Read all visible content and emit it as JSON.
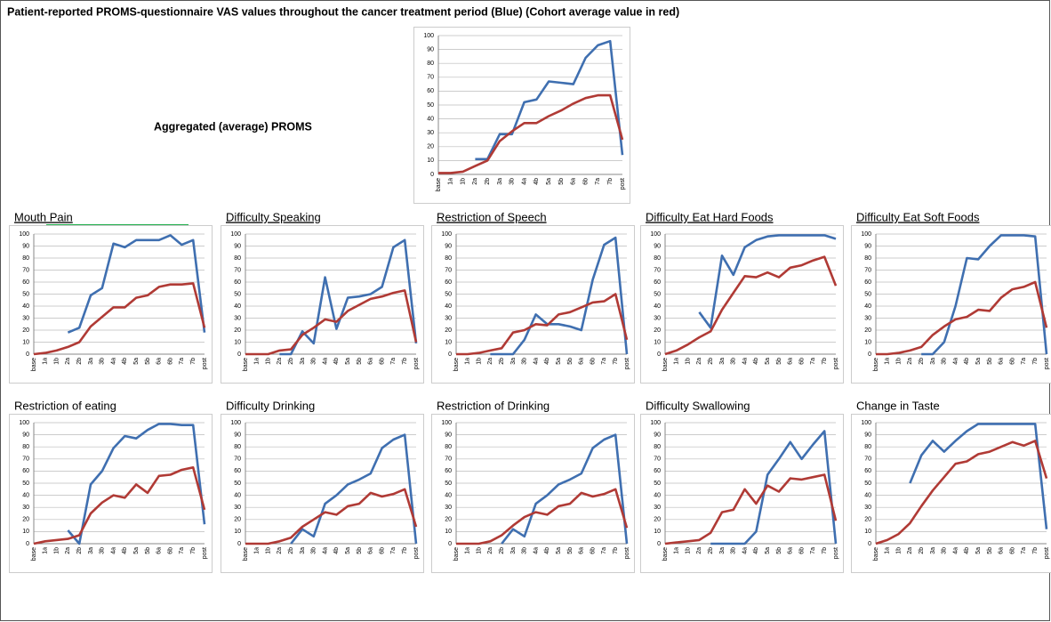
{
  "page": {
    "title": "Patient-reported PROMS-questionnaire VAS values throughout the cancer treatment period (Blue) (Cohort average value in red)"
  },
  "chart_data": [
    {
      "type": "line",
      "title": "Aggregated (average) PROMS",
      "categories": [
        "base",
        "1a",
        "1b",
        "2a",
        "2b",
        "3a",
        "3b",
        "4a",
        "4b",
        "5a",
        "5b",
        "6a",
        "6b",
        "7a",
        "7b",
        "post"
      ],
      "ylim": [
        0,
        100
      ],
      "yticks": [
        0,
        10,
        20,
        30,
        40,
        50,
        60,
        70,
        80,
        90,
        100
      ],
      "grid": true,
      "series": [
        {
          "color": "#3f6fb0",
          "values": [
            null,
            null,
            null,
            11,
            11,
            29,
            29,
            52,
            54,
            67,
            66,
            65,
            84,
            93,
            96,
            14
          ]
        },
        {
          "color": "#b03a35",
          "values": [
            1,
            1,
            2,
            6,
            10,
            24,
            31,
            37,
            37,
            42,
            46,
            51,
            55,
            57,
            57,
            25
          ]
        }
      ]
    },
    {
      "type": "line",
      "title": "Mouth Pain",
      "title_underline": true,
      "categories": [
        "base",
        "1a",
        "1b",
        "2a",
        "2b",
        "3a",
        "3b",
        "4a",
        "4b",
        "5a",
        "5b",
        "6a",
        "6b",
        "7a",
        "7b",
        "post"
      ],
      "ylim": [
        0,
        100
      ],
      "yticks": [
        0,
        10,
        20,
        30,
        40,
        50,
        60,
        70,
        80,
        90,
        100
      ],
      "grid": true,
      "series": [
        {
          "color": "#3f6fb0",
          "values": [
            null,
            null,
            null,
            18,
            22,
            49,
            55,
            92,
            89,
            95,
            95,
            95,
            99,
            91,
            95,
            18
          ]
        },
        {
          "color": "#b03a35",
          "values": [
            0,
            1,
            3,
            6,
            10,
            23,
            31,
            39,
            39,
            47,
            49,
            56,
            58,
            58,
            59,
            22
          ]
        }
      ]
    },
    {
      "type": "line",
      "title": "Difficulty Speaking",
      "title_underline": true,
      "categories": [
        "base",
        "1a",
        "1b",
        "2a",
        "2b",
        "3a",
        "3b",
        "4a",
        "4b",
        "5a",
        "5b",
        "6a",
        "6b",
        "7a",
        "7b",
        "post"
      ],
      "ylim": [
        0,
        100
      ],
      "yticks": [
        0,
        10,
        20,
        30,
        40,
        50,
        60,
        70,
        80,
        90,
        100
      ],
      "grid": true,
      "series": [
        {
          "color": "#3f6fb0",
          "values": [
            null,
            null,
            null,
            0,
            0,
            19,
            9,
            64,
            21,
            47,
            48,
            50,
            56,
            89,
            95,
            9
          ]
        },
        {
          "color": "#b03a35",
          "values": [
            0,
            0,
            0,
            3,
            4,
            16,
            22,
            29,
            27,
            36,
            41,
            46,
            48,
            51,
            53,
            10
          ]
        }
      ]
    },
    {
      "type": "line",
      "title": "Restriction of Speech",
      "title_underline": true,
      "categories": [
        "base",
        "1a",
        "1b",
        "2a",
        "2b",
        "3a",
        "3b",
        "4a",
        "4b",
        "5a",
        "5b",
        "6a",
        "6b",
        "7a",
        "7b",
        "post"
      ],
      "ylim": [
        0,
        100
      ],
      "yticks": [
        0,
        10,
        20,
        30,
        40,
        50,
        60,
        70,
        80,
        90,
        100
      ],
      "grid": true,
      "series": [
        {
          "color": "#3f6fb0",
          "values": [
            null,
            null,
            null,
            0,
            0,
            0,
            12,
            33,
            25,
            25,
            23,
            20,
            62,
            91,
            97,
            0
          ]
        },
        {
          "color": "#b03a35",
          "values": [
            0,
            0,
            1,
            3,
            5,
            18,
            20,
            25,
            24,
            33,
            35,
            39,
            43,
            44,
            50,
            12
          ]
        }
      ]
    },
    {
      "type": "line",
      "title": "Difficulty Eat Hard Foods",
      "title_underline": true,
      "categories": [
        "base",
        "1a",
        "1b",
        "2a",
        "2b",
        "3a",
        "3b",
        "4a",
        "4b",
        "5a",
        "5b",
        "6a",
        "6b",
        "7a",
        "7b",
        "post"
      ],
      "ylim": [
        0,
        100
      ],
      "yticks": [
        0,
        10,
        20,
        30,
        40,
        50,
        60,
        70,
        80,
        90,
        100
      ],
      "grid": true,
      "series": [
        {
          "color": "#3f6fb0",
          "values": [
            null,
            null,
            null,
            35,
            22,
            82,
            66,
            89,
            95,
            98,
            99,
            99,
            99,
            99,
            99,
            96
          ]
        },
        {
          "color": "#b03a35",
          "values": [
            0,
            3,
            8,
            14,
            19,
            37,
            51,
            65,
            64,
            68,
            64,
            72,
            74,
            78,
            81,
            57
          ]
        }
      ]
    },
    {
      "type": "line",
      "title": "Difficulty Eat Soft Foods",
      "title_underline": true,
      "categories": [
        "base",
        "1a",
        "1b",
        "2a",
        "2b",
        "3a",
        "3b",
        "4a",
        "4b",
        "5a",
        "5b",
        "6a",
        "6b",
        "7a",
        "7b",
        "post"
      ],
      "ylim": [
        0,
        100
      ],
      "yticks": [
        0,
        10,
        20,
        30,
        40,
        50,
        60,
        70,
        80,
        90,
        100
      ],
      "grid": true,
      "series": [
        {
          "color": "#3f6fb0",
          "values": [
            null,
            null,
            null,
            null,
            0,
            0,
            10,
            40,
            80,
            79,
            90,
            99,
            99,
            99,
            98,
            0
          ]
        },
        {
          "color": "#b03a35",
          "values": [
            0,
            0,
            1,
            3,
            6,
            16,
            23,
            29,
            31,
            37,
            36,
            47,
            54,
            56,
            60,
            22
          ]
        }
      ]
    },
    {
      "type": "line",
      "title": "Restriction of eating",
      "categories": [
        "base",
        "1a",
        "1b",
        "2a",
        "2b",
        "3a",
        "3b",
        "4a",
        "4b",
        "5a",
        "5b",
        "6a",
        "6b",
        "7a",
        "7b",
        "post"
      ],
      "ylim": [
        0,
        100
      ],
      "yticks": [
        0,
        10,
        20,
        30,
        40,
        50,
        60,
        70,
        80,
        90,
        100
      ],
      "grid": true,
      "series": [
        {
          "color": "#3f6fb0",
          "values": [
            null,
            null,
            null,
            11,
            0,
            49,
            60,
            79,
            89,
            87,
            94,
            99,
            99,
            98,
            98,
            16
          ]
        },
        {
          "color": "#b03a35",
          "values": [
            0,
            2,
            3,
            4,
            7,
            25,
            34,
            40,
            38,
            49,
            42,
            56,
            57,
            61,
            63,
            28
          ]
        }
      ]
    },
    {
      "type": "line",
      "title": "Difficulty Drinking",
      "categories": [
        "base",
        "1a",
        "1b",
        "2a",
        "2b",
        "3a",
        "3b",
        "4a",
        "4b",
        "5a",
        "5b",
        "6a",
        "6b",
        "7a",
        "7b",
        "post"
      ],
      "ylim": [
        0,
        100
      ],
      "yticks": [
        0,
        10,
        20,
        30,
        40,
        50,
        60,
        70,
        80,
        90,
        100
      ],
      "grid": true,
      "series": [
        {
          "color": "#3f6fb0",
          "values": [
            null,
            null,
            null,
            null,
            0,
            12,
            6,
            33,
            40,
            49,
            53,
            58,
            79,
            86,
            90,
            0
          ]
        },
        {
          "color": "#b03a35",
          "values": [
            0,
            0,
            0,
            2,
            5,
            14,
            20,
            26,
            24,
            31,
            33,
            42,
            39,
            41,
            45,
            14
          ]
        }
      ]
    },
    {
      "type": "line",
      "title": "Restriction of Drinking",
      "categories": [
        "base",
        "1a",
        "1b",
        "2a",
        "2b",
        "3a",
        "3b",
        "4a",
        "4b",
        "5a",
        "5b",
        "6a",
        "6b",
        "7a",
        "7b",
        "post"
      ],
      "ylim": [
        0,
        100
      ],
      "yticks": [
        0,
        10,
        20,
        30,
        40,
        50,
        60,
        70,
        80,
        90,
        100
      ],
      "grid": true,
      "series": [
        {
          "color": "#3f6fb0",
          "values": [
            null,
            null,
            null,
            null,
            0,
            12,
            6,
            33,
            40,
            49,
            53,
            58,
            79,
            86,
            90,
            0
          ]
        },
        {
          "color": "#b03a35",
          "values": [
            0,
            0,
            0,
            2,
            7,
            15,
            22,
            26,
            24,
            31,
            33,
            42,
            39,
            41,
            45,
            13
          ]
        }
      ]
    },
    {
      "type": "line",
      "title": "Difficulty Swallowing",
      "categories": [
        "base",
        "1a",
        "1b",
        "2a",
        "2b",
        "3a",
        "3b",
        "4a",
        "4b",
        "5a",
        "5b",
        "6a",
        "6b",
        "7a",
        "7b",
        "post"
      ],
      "ylim": [
        0,
        100
      ],
      "yticks": [
        0,
        10,
        20,
        30,
        40,
        50,
        60,
        70,
        80,
        90,
        100
      ],
      "grid": true,
      "series": [
        {
          "color": "#3f6fb0",
          "values": [
            null,
            null,
            null,
            null,
            0,
            0,
            0,
            0,
            10,
            57,
            70,
            84,
            70,
            82,
            93,
            0
          ]
        },
        {
          "color": "#b03a35",
          "values": [
            0,
            1,
            2,
            3,
            9,
            26,
            28,
            45,
            33,
            48,
            43,
            54,
            53,
            55,
            57,
            19
          ]
        }
      ]
    },
    {
      "type": "line",
      "title": "Change in Taste",
      "categories": [
        "base",
        "1a",
        "1b",
        "2a",
        "2b",
        "3a",
        "3b",
        "4a",
        "4b",
        "5a",
        "5b",
        "6a",
        "6b",
        "7a",
        "7b",
        "post"
      ],
      "ylim": [
        0,
        100
      ],
      "yticks": [
        0,
        10,
        20,
        30,
        40,
        50,
        60,
        70,
        80,
        90,
        100
      ],
      "grid": true,
      "series": [
        {
          "color": "#3f6fb0",
          "values": [
            null,
            null,
            null,
            50,
            73,
            85,
            76,
            85,
            93,
            99,
            99,
            99,
            99,
            99,
            99,
            12
          ]
        },
        {
          "color": "#b03a35",
          "values": [
            0,
            3,
            8,
            17,
            31,
            44,
            55,
            66,
            68,
            74,
            76,
            80,
            84,
            81,
            85,
            54
          ]
        }
      ]
    }
  ]
}
